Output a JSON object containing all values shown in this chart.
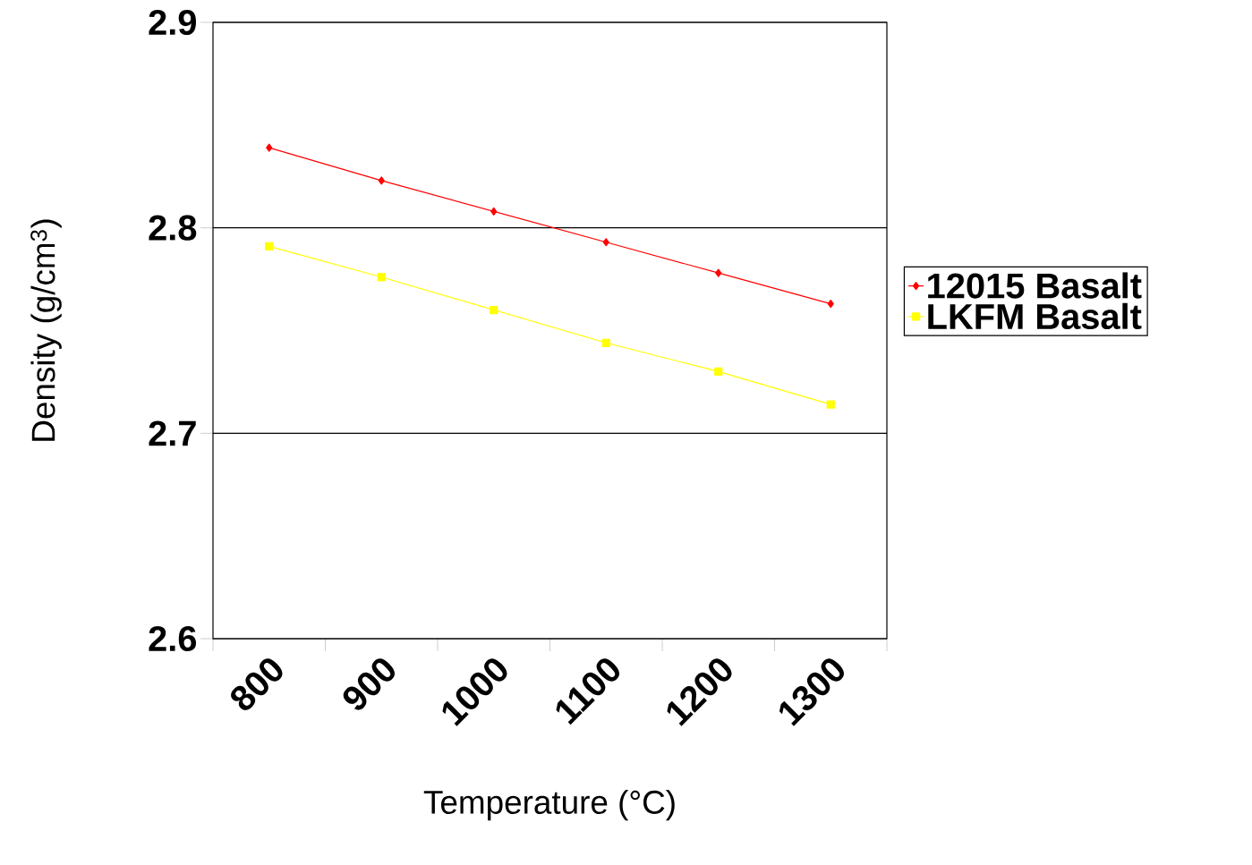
{
  "chart_data": {
    "type": "line",
    "xlabel": "Temperature (°C)",
    "ylabel": "Density (g/cm$^{3}$)",
    "categories": [
      "800",
      "900",
      "1000",
      "1100",
      "1200",
      "1300"
    ],
    "series": [
      {
        "name": "12015 Basalt",
        "color": "#ff0000",
        "marker": "diamond",
        "values": [
          2.839,
          2.823,
          2.808,
          2.793,
          2.778,
          2.763
        ]
      },
      {
        "name": "LKFM Basalt",
        "color": "#ffff00",
        "marker": "square",
        "values": [
          2.791,
          2.776,
          2.76,
          2.744,
          2.73,
          2.714
        ]
      }
    ],
    "ylim": [
      2.6,
      2.9
    ],
    "yticks": [
      2.6,
      2.7,
      2.8,
      2.9
    ],
    "grid": "y",
    "legend": "right",
    "line_style": "solid"
  }
}
